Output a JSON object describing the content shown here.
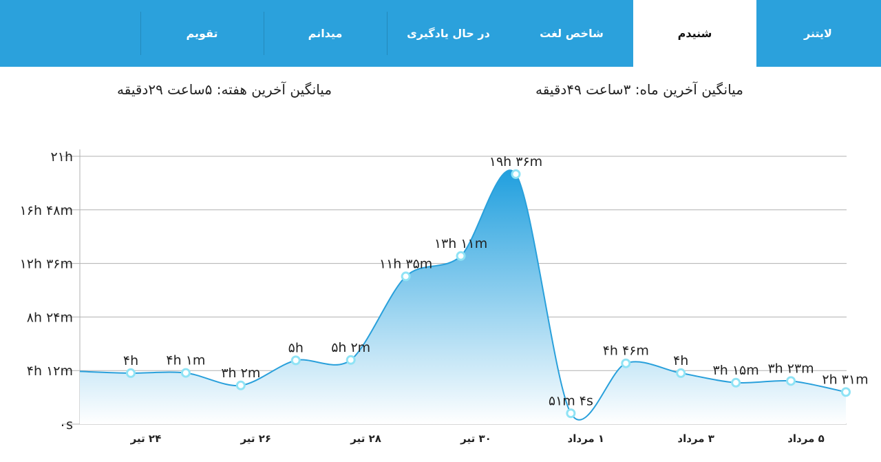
{
  "tabs": [
    {
      "label": "لایتنر",
      "active": false
    },
    {
      "label": "شنیدم",
      "active": true
    },
    {
      "label": "شاخص لغت",
      "active": false
    },
    {
      "label": "در حال یادگیری",
      "active": false
    },
    {
      "label": "میدانم",
      "active": false
    },
    {
      "label": "تقویم",
      "active": false
    }
  ],
  "stats": {
    "month": "میانگین آخرین ماه: ۳ساعت  ۴۹دقیقه",
    "week": "میانگین آخرین هفته: ۵ساعت  ۲۹دقیقه"
  },
  "colors": {
    "accent": "#2ba1dc",
    "line": "#29a0db",
    "area_top": "#209fde",
    "area_bottom": "#ffffff",
    "point": "#8fe3f5",
    "grid": "#b0b0b0"
  },
  "chart_data": {
    "type": "area",
    "y_unit": "minutes",
    "ylim": [
      0,
      1260
    ],
    "y_ticks": [
      {
        "value": 0,
        "label": "۰s"
      },
      {
        "value": 252,
        "label": "۴h ۱۲m"
      },
      {
        "value": 504,
        "label": "۸h ۲۴m"
      },
      {
        "value": 756,
        "label": "۱۲h ۳۶m"
      },
      {
        "value": 1008,
        "label": "۱۶h ۴۸m"
      },
      {
        "value": 1260,
        "label": "۲۱h"
      }
    ],
    "x_ticks": [
      "۲۴ تیر",
      "۲۶ تیر",
      "۲۸ تیر",
      "۳۰ تیر",
      "۱ مرداد",
      "۳ مرداد",
      "۵ مرداد"
    ],
    "grid": true,
    "points": [
      {
        "value": 240,
        "label": "۴h"
      },
      {
        "value": 241,
        "label": "۴h ۱m"
      },
      {
        "value": 182,
        "label": "۳h ۲m"
      },
      {
        "value": 300,
        "label": "۵h"
      },
      {
        "value": 302,
        "label": "۵h ۲m"
      },
      {
        "value": 695,
        "label": "۱۱h ۳۵m"
      },
      {
        "value": 791,
        "label": "۱۳h ۱۱m"
      },
      {
        "value": 1176,
        "label": "۱۹h ۳۶m"
      },
      {
        "value": 51,
        "label": "۵۱m ۴s"
      },
      {
        "value": 286,
        "label": "۴h ۴۶m"
      },
      {
        "value": 240,
        "label": "۴h"
      },
      {
        "value": 195,
        "label": "۳h ۱۵m"
      },
      {
        "value": 203,
        "label": "۳h ۲۳m"
      },
      {
        "value": 151,
        "label": "۲h ۳۱m"
      }
    ]
  }
}
